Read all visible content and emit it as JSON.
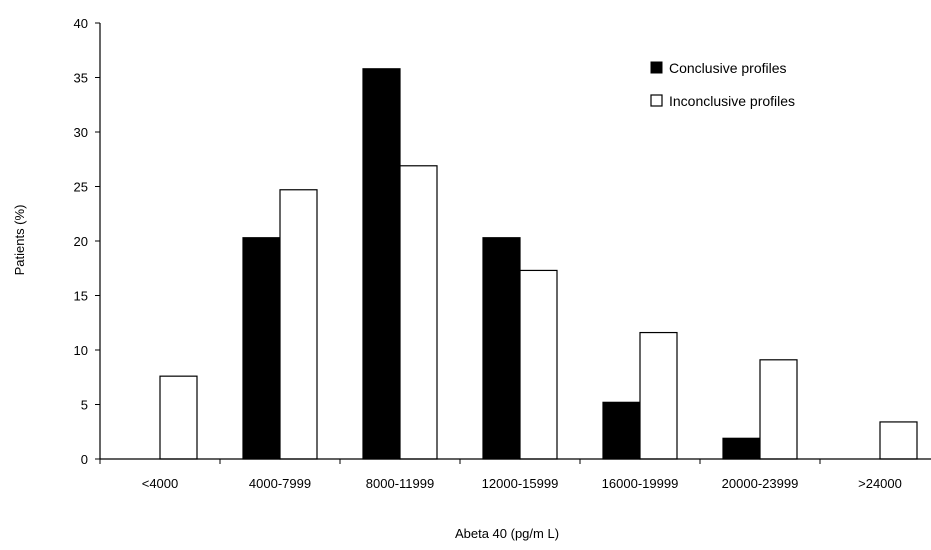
{
  "chart_data": {
    "type": "bar",
    "title": "",
    "xlabel": "Abeta 40 (pg/m L)",
    "ylabel": "Patients (%)",
    "categories": [
      "<4000",
      "4000-7999",
      "8000-11999",
      "12000-15999",
      "16000-19999",
      "20000-23999",
      ">24000"
    ],
    "series": [
      {
        "name": "Conclusive profiles",
        "values": [
          0,
          20.3,
          35.8,
          20.3,
          5.2,
          1.9,
          0
        ],
        "color": "#000000"
      },
      {
        "name": "Inconclusive profiles",
        "values": [
          7.6,
          24.7,
          26.9,
          17.3,
          11.6,
          9.1,
          3.4
        ],
        "color": "#ffffff"
      }
    ],
    "ylim": [
      0,
      40
    ],
    "yticks": [
      0,
      5,
      10,
      15,
      20,
      25,
      30,
      35,
      40
    ],
    "grid": false,
    "legend": "top-right"
  }
}
